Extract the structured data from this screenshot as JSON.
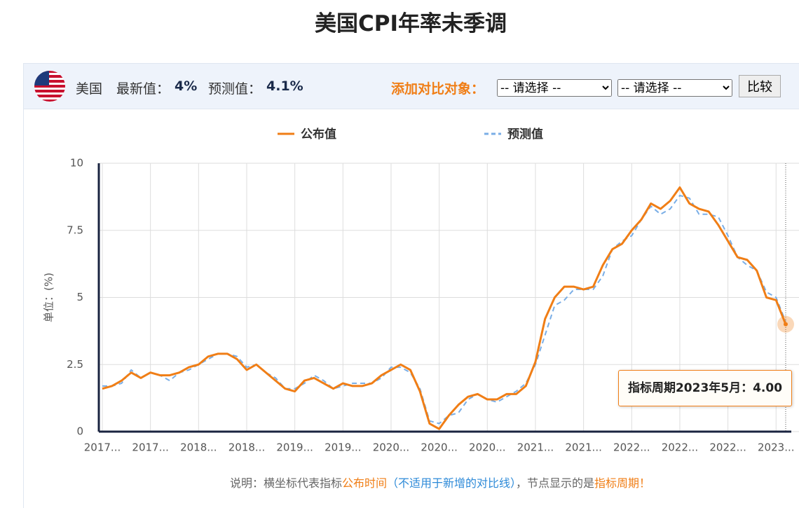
{
  "header": {
    "title": "美国CPI年率未季调",
    "country": "美国",
    "latest_label": "最新值：",
    "latest_value": "4%",
    "forecast_label": "预测值：",
    "forecast_value": "4.1%",
    "compare_label": "添加对比对象：",
    "select_options": [
      "-- 请选择 --",
      "-- 请选择 --"
    ],
    "compare_button": "比较"
  },
  "chart_data": {
    "type": "line",
    "ylabel": "单位：(%)",
    "categories": [
      "2017...",
      null,
      null,
      null,
      null,
      "2017...",
      null,
      null,
      null,
      null,
      "2018...",
      null,
      null,
      null,
      null,
      "2018...",
      null,
      null,
      null,
      null,
      "2019...",
      null,
      null,
      null,
      null,
      "2019...",
      null,
      null,
      null,
      null,
      "2020...",
      null,
      null,
      null,
      null,
      "2020...",
      null,
      null,
      null,
      null,
      "2020...",
      null,
      null,
      null,
      null,
      "2021...",
      null,
      null,
      null,
      null,
      "2021...",
      null,
      null,
      null,
      null,
      "2022...",
      null,
      null,
      null,
      null,
      "2022...",
      null,
      null,
      null,
      null,
      "2022...",
      null,
      null,
      null,
      null,
      "2023...",
      null
    ],
    "series": [
      {
        "name": "公布值",
        "color": "#f07e16",
        "dash": false,
        "values": [
          1.6,
          1.7,
          1.9,
          2.2,
          2.0,
          2.2,
          2.1,
          2.1,
          2.2,
          2.4,
          2.5,
          2.8,
          2.9,
          2.9,
          2.7,
          2.3,
          2.5,
          2.2,
          1.9,
          1.6,
          1.5,
          1.9,
          2.0,
          1.8,
          1.6,
          1.8,
          1.7,
          1.7,
          1.8,
          2.1,
          2.3,
          2.5,
          2.3,
          1.5,
          0.3,
          0.1,
          0.6,
          1.0,
          1.3,
          1.4,
          1.2,
          1.2,
          1.4,
          1.4,
          1.7,
          2.6,
          4.2,
          5.0,
          5.4,
          5.4,
          5.3,
          5.4,
          6.2,
          6.8,
          7.0,
          7.5,
          7.9,
          8.5,
          8.3,
          8.6,
          9.1,
          8.5,
          8.3,
          8.2,
          7.7,
          7.1,
          6.5,
          6.4,
          6.0,
          5.0,
          4.9,
          4.0
        ]
      },
      {
        "name": "预测值",
        "color": "#7aaee6",
        "dash": true,
        "values": [
          1.7,
          1.7,
          1.8,
          2.3,
          2.0,
          2.2,
          2.1,
          1.9,
          2.2,
          2.3,
          2.5,
          2.7,
          2.9,
          2.9,
          2.8,
          2.4,
          2.5,
          2.2,
          2.0,
          1.6,
          1.6,
          1.8,
          2.1,
          1.9,
          1.6,
          1.7,
          1.8,
          1.8,
          1.8,
          2.0,
          2.4,
          2.4,
          2.2,
          1.6,
          0.4,
          0.3,
          0.6,
          0.7,
          1.2,
          1.4,
          1.2,
          1.1,
          1.3,
          1.5,
          1.8,
          2.5,
          3.6,
          4.7,
          4.9,
          5.3,
          5.3,
          5.3,
          5.8,
          6.8,
          7.1,
          7.3,
          7.9,
          8.4,
          8.1,
          8.3,
          8.8,
          8.7,
          8.1,
          8.1,
          8.0,
          7.3,
          6.5,
          6.2,
          6.0,
          5.2,
          5.0,
          4.1
        ]
      }
    ],
    "ylim": [
      0,
      10
    ],
    "yticks": [
      0,
      2.5,
      5,
      7.5,
      10
    ],
    "grid": true,
    "tooltip": "指标周期2023年5月：4.00"
  },
  "note": [
    "说明：横坐标代表指标",
    "公布时间",
    "（不适用于新增的对比线）",
    "，节点显示的是",
    "指标周期！"
  ]
}
